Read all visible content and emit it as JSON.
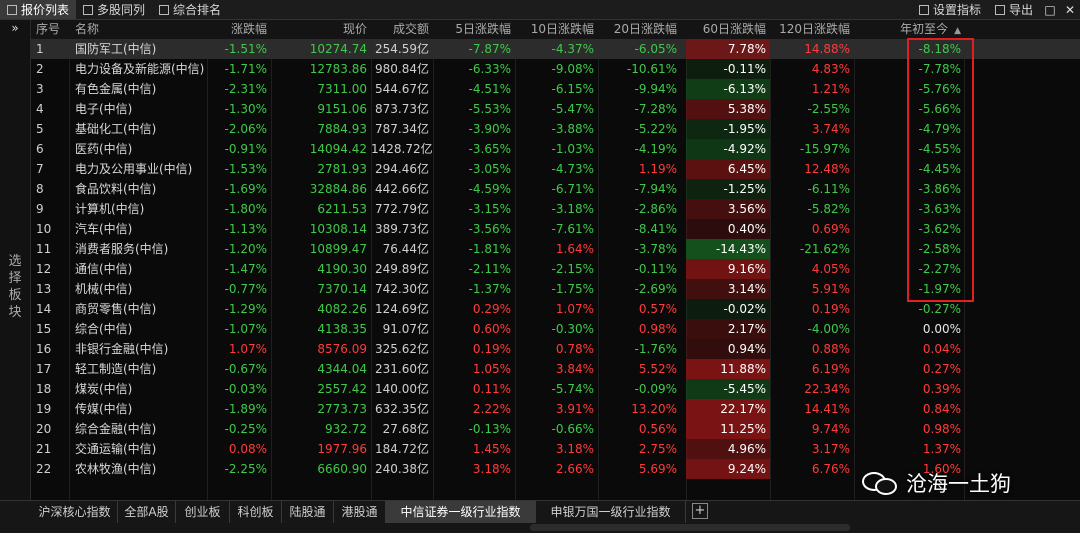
{
  "toolbar": {
    "tabs": [
      "报价列表",
      "多股同列",
      "综合排名"
    ],
    "settings": "设置指标",
    "export": "导出",
    "window_buttons": [
      "□",
      "✕"
    ]
  },
  "sidebar": {
    "expand": "»",
    "label": "选择板块"
  },
  "headers": {
    "idx": "序号",
    "name": "名称",
    "pct": "涨跌幅",
    "price": "现价",
    "vol": "成交额",
    "d5": "5日涨跌幅",
    "d10": "10日涨跌幅",
    "d20": "20日涨跌幅",
    "d60": "60日涨跌幅",
    "d120": "120日涨跌幅",
    "ytd": "年初至今",
    "sort_icon": "▲"
  },
  "colors": {
    "up": "#ff3b3b",
    "down": "#3fc94a",
    "flat": "#e8e8e8",
    "highlight": "#e02020",
    "heat_up": "#7a1414",
    "heat_down": "#13501c"
  },
  "rows": [
    {
      "idx": "1",
      "name": "国防军工(中信)",
      "pct": "-1.51%",
      "price": "10274.74",
      "vol": "254.59亿",
      "d5": "-7.87%",
      "d10": "-4.37%",
      "d20": "-6.05%",
      "d60": "7.78%",
      "d120": "14.88%",
      "ytd": "-8.18%"
    },
    {
      "idx": "2",
      "name": "电力设备及新能源(中信)",
      "pct": "-1.71%",
      "price": "12783.86",
      "vol": "980.84亿",
      "d5": "-6.33%",
      "d10": "-9.08%",
      "d20": "-10.61%",
      "d60": "-0.11%",
      "d120": "4.83%",
      "ytd": "-7.78%"
    },
    {
      "idx": "3",
      "name": "有色金属(中信)",
      "pct": "-2.31%",
      "price": "7311.00",
      "vol": "544.67亿",
      "d5": "-4.51%",
      "d10": "-6.15%",
      "d20": "-9.94%",
      "d60": "-6.13%",
      "d120": "1.21%",
      "ytd": "-5.76%"
    },
    {
      "idx": "4",
      "name": "电子(中信)",
      "pct": "-1.30%",
      "price": "9151.06",
      "vol": "873.73亿",
      "d5": "-5.53%",
      "d10": "-5.47%",
      "d20": "-7.28%",
      "d60": "5.38%",
      "d120": "-2.55%",
      "ytd": "-5.66%"
    },
    {
      "idx": "5",
      "name": "基础化工(中信)",
      "pct": "-2.06%",
      "price": "7884.93",
      "vol": "787.34亿",
      "d5": "-3.90%",
      "d10": "-3.88%",
      "d20": "-5.22%",
      "d60": "-1.95%",
      "d120": "3.74%",
      "ytd": "-4.79%"
    },
    {
      "idx": "6",
      "name": "医药(中信)",
      "pct": "-0.91%",
      "price": "14094.42",
      "vol": "1428.72亿",
      "d5": "-3.65%",
      "d10": "-1.03%",
      "d20": "-4.19%",
      "d60": "-4.92%",
      "d120": "-15.97%",
      "ytd": "-4.55%"
    },
    {
      "idx": "7",
      "name": "电力及公用事业(中信)",
      "pct": "-1.53%",
      "price": "2781.93",
      "vol": "294.46亿",
      "d5": "-3.05%",
      "d10": "-4.73%",
      "d20": "1.19%",
      "d60": "6.45%",
      "d120": "12.48%",
      "ytd": "-4.45%"
    },
    {
      "idx": "8",
      "name": "食品饮料(中信)",
      "pct": "-1.69%",
      "price": "32884.86",
      "vol": "442.66亿",
      "d5": "-4.59%",
      "d10": "-6.71%",
      "d20": "-7.94%",
      "d60": "-1.25%",
      "d120": "-6.11%",
      "ytd": "-3.86%"
    },
    {
      "idx": "9",
      "name": "计算机(中信)",
      "pct": "-1.80%",
      "price": "6211.53",
      "vol": "772.79亿",
      "d5": "-3.15%",
      "d10": "-3.18%",
      "d20": "-2.86%",
      "d60": "3.56%",
      "d120": "-5.82%",
      "ytd": "-3.63%"
    },
    {
      "idx": "10",
      "name": "汽车(中信)",
      "pct": "-1.13%",
      "price": "10308.14",
      "vol": "389.73亿",
      "d5": "-3.56%",
      "d10": "-7.61%",
      "d20": "-8.41%",
      "d60": "0.40%",
      "d120": "0.69%",
      "ytd": "-3.62%"
    },
    {
      "idx": "11",
      "name": "消费者服务(中信)",
      "pct": "-1.20%",
      "price": "10899.47",
      "vol": "76.44亿",
      "d5": "-1.81%",
      "d10": "1.64%",
      "d20": "-3.78%",
      "d60": "-14.43%",
      "d120": "-21.62%",
      "ytd": "-2.58%"
    },
    {
      "idx": "12",
      "name": "通信(中信)",
      "pct": "-1.47%",
      "price": "4190.30",
      "vol": "249.89亿",
      "d5": "-2.11%",
      "d10": "-2.15%",
      "d20": "-0.11%",
      "d60": "9.16%",
      "d120": "4.05%",
      "ytd": "-2.27%"
    },
    {
      "idx": "13",
      "name": "机械(中信)",
      "pct": "-0.77%",
      "price": "7370.14",
      "vol": "742.30亿",
      "d5": "-1.37%",
      "d10": "-1.75%",
      "d20": "-2.69%",
      "d60": "3.14%",
      "d120": "5.91%",
      "ytd": "-1.97%"
    },
    {
      "idx": "14",
      "name": "商贸零售(中信)",
      "pct": "-1.29%",
      "price": "4082.26",
      "vol": "124.69亿",
      "d5": "0.29%",
      "d10": "1.07%",
      "d20": "0.57%",
      "d60": "-0.02%",
      "d120": "0.19%",
      "ytd": "-0.27%"
    },
    {
      "idx": "15",
      "name": "综合(中信)",
      "pct": "-1.07%",
      "price": "4138.35",
      "vol": "91.07亿",
      "d5": "0.60%",
      "d10": "-0.30%",
      "d20": "0.98%",
      "d60": "2.17%",
      "d120": "-4.00%",
      "ytd": "0.00%"
    },
    {
      "idx": "16",
      "name": "非银行金融(中信)",
      "pct": "1.07%",
      "price": "8576.09",
      "vol": "325.62亿",
      "d5": "0.19%",
      "d10": "0.78%",
      "d20": "-1.76%",
      "d60": "0.94%",
      "d120": "0.88%",
      "ytd": "0.04%"
    },
    {
      "idx": "17",
      "name": "轻工制造(中信)",
      "pct": "-0.67%",
      "price": "4344.04",
      "vol": "231.60亿",
      "d5": "1.05%",
      "d10": "3.84%",
      "d20": "5.52%",
      "d60": "11.88%",
      "d120": "6.19%",
      "ytd": "0.27%"
    },
    {
      "idx": "18",
      "name": "煤炭(中信)",
      "pct": "-0.03%",
      "price": "2557.42",
      "vol": "140.00亿",
      "d5": "0.11%",
      "d10": "-5.74%",
      "d20": "-0.09%",
      "d60": "-5.45%",
      "d120": "22.34%",
      "ytd": "0.39%"
    },
    {
      "idx": "19",
      "name": "传媒(中信)",
      "pct": "-1.89%",
      "price": "2773.73",
      "vol": "632.35亿",
      "d5": "2.22%",
      "d10": "3.91%",
      "d20": "13.20%",
      "d60": "22.17%",
      "d120": "14.41%",
      "ytd": "0.84%"
    },
    {
      "idx": "20",
      "name": "综合金融(中信)",
      "pct": "-0.25%",
      "price": "932.72",
      "vol": "27.68亿",
      "d5": "-0.13%",
      "d10": "-0.66%",
      "d20": "0.56%",
      "d60": "11.25%",
      "d120": "9.74%",
      "ytd": "0.98%"
    },
    {
      "idx": "21",
      "name": "交通运输(中信)",
      "pct": "0.08%",
      "price": "1977.96",
      "vol": "184.72亿",
      "d5": "1.45%",
      "d10": "3.18%",
      "d20": "2.75%",
      "d60": "4.96%",
      "d120": "3.17%",
      "ytd": "1.37%"
    },
    {
      "idx": "22",
      "name": "农林牧渔(中信)",
      "pct": "-2.25%",
      "price": "6660.90",
      "vol": "240.38亿",
      "d5": "3.18%",
      "d10": "2.66%",
      "d20": "5.69%",
      "d60": "9.24%",
      "d120": "6.76%",
      "ytd": "1.60%"
    }
  ],
  "bottom_tabs": [
    "沪深核心指数",
    "全部A股",
    "创业板",
    "科创板",
    "陆股通",
    "港股通",
    "中信证券一级行业指数",
    "申银万国一级行业指数"
  ],
  "bottom_add": "+",
  "watermark": "沧海一土狗"
}
